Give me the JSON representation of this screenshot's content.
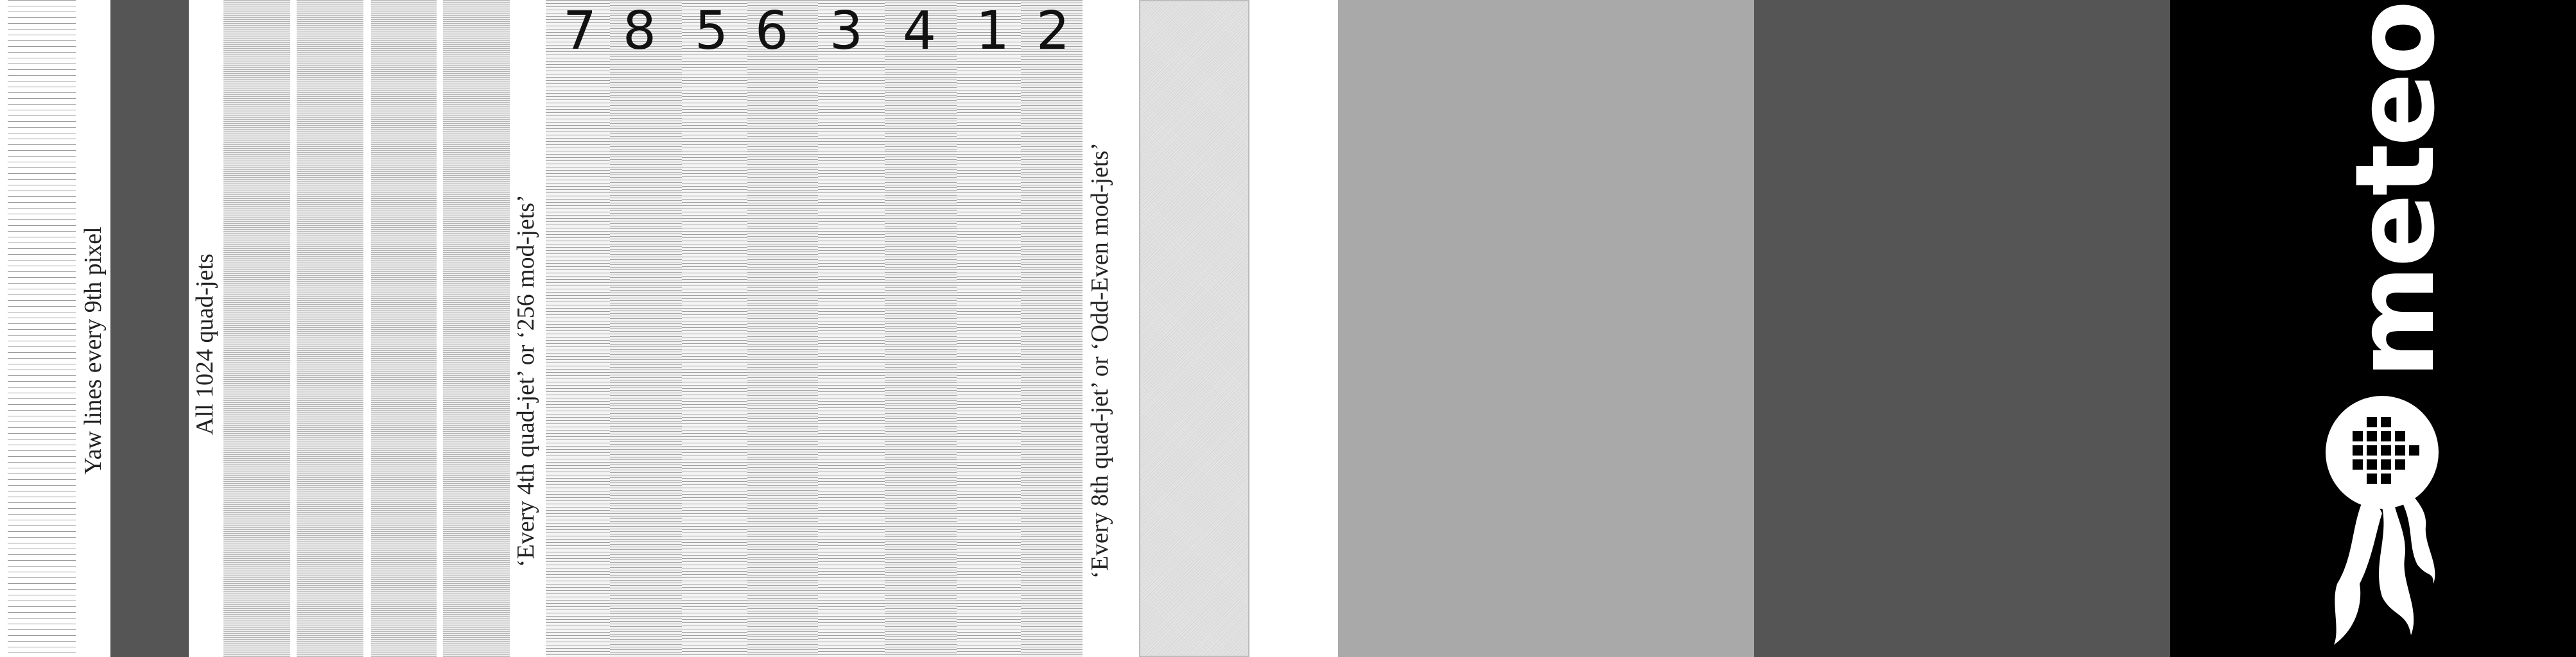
{
  "labels": {
    "yaw": "Yaw lines every 9th pixel",
    "all": "All 1024 quad-jets",
    "every4": "‘Every 4th quad-jet’ or ‘256 mod-jets’",
    "every8": "‘Every 8th quad-jet’ or ‘Odd-Even mod-jets’"
  },
  "channel_numbers": [
    "7",
    "8",
    "5",
    "6",
    "3",
    "4",
    "1",
    "2"
  ],
  "logo": {
    "text": "meteor"
  },
  "colors": {
    "dark_bar": "#555555",
    "light_gray_block": "#a9a9a9",
    "dark_gray_block": "#555555",
    "logo_panel": "#000000"
  }
}
